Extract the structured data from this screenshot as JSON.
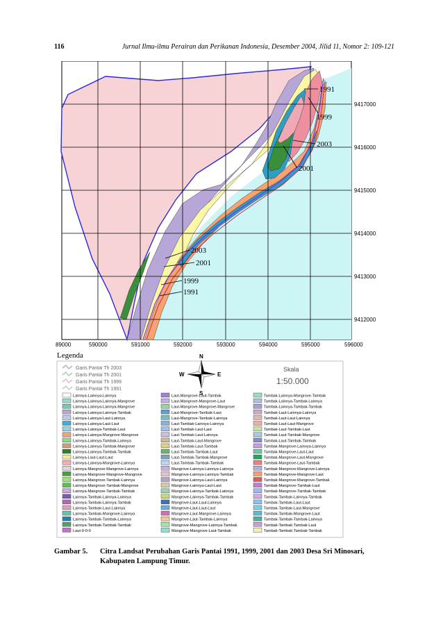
{
  "header": {
    "page_number": "116",
    "journal": "Jurnal Ilmu-ilmu Perairan dan Perikanan Indonesia, Desember 2004, Jilid 11, Nomor 2: 109-121"
  },
  "map": {
    "x_ticks": [
      "89000",
      "590000",
      "591000",
      "592000",
      "593000",
      "594000",
      "595000",
      "596000"
    ],
    "y_ticks": [
      "9417000",
      "9416000",
      "9415000",
      "9414000",
      "9413000",
      "9412000"
    ],
    "shoreline_labels_east": [
      "1991",
      "1999",
      "2003",
      "2001"
    ],
    "shoreline_labels_west": [
      "2003",
      "2001",
      "1999",
      "1991"
    ],
    "colors": {
      "sea": "#cdf5f5",
      "land": "#f8d3d6",
      "lavender": "#b7a6d8",
      "yellow": "#fbf7a6",
      "green": "#3a8f3a",
      "orange": "#f6a36f",
      "pink": "#ee8fa0",
      "teal": "#2e9fc4",
      "boundary": "#2b2bd6"
    }
  },
  "legend": {
    "title": "Legenda",
    "lines": [
      {
        "label": "Garis Pantai Th 2003",
        "color": "#b9b0c8"
      },
      {
        "label": "Garis Pantai Th 2001",
        "color": "#9fd89f"
      },
      {
        "label": "Garis Pantai Th 1999",
        "color": "#e8b8c8"
      },
      {
        "label": "Garis Pantai Th 1991",
        "color": "#c8c8c8"
      }
    ],
    "compass": {
      "n": "N",
      "s": "S",
      "e": "E",
      "w": "W"
    },
    "scale": {
      "label": "Skala",
      "value": "1:50.000"
    },
    "columns": [
      [
        {
          "label": "Lainnya-Lainnya-Lainnya",
          "color": "#ffffff"
        },
        {
          "label": "Lainnya-Lainnya-Lainnya-Mangrove",
          "color": "#9fd6c8"
        },
        {
          "label": "Lainnya-Lainnya-Lainnya-Mangrove",
          "color": "#7cc7b0"
        },
        {
          "label": "Lainnya-Lainnya-Lainnya-Tambak",
          "color": "#b9a8d6"
        },
        {
          "label": "Lainnya-Lainnya-Laut-Lainnya",
          "color": "#c6c6e8"
        },
        {
          "label": "Lainnya-Lainnya-Laut-Laut",
          "color": "#3cb0d8"
        },
        {
          "label": "Lainnya-Lainnya-Tambak-Laut",
          "color": "#90d4e6"
        },
        {
          "label": "Lainnya-Lainnya-Mangrove-Mangrove",
          "color": "#f4a27a"
        },
        {
          "label": "Lainnya-Lainnya-Tambak-Lainnya",
          "color": "#8fd68f"
        },
        {
          "label": "Lainnya-Lainnya-Tambak-Mangrove",
          "color": "#c9a27c"
        },
        {
          "label": "Lainnya-Lainnya-Tambak-Tambak",
          "color": "#2f7f2f"
        },
        {
          "label": "Lainnya-Laut-Laut-Laut",
          "color": "#f0e8a0"
        },
        {
          "label": "Lainnya-Lainnya-Mangrove-Lainnya",
          "color": "#f4b0b8"
        },
        {
          "label": "Lainnya-Mangrove-Mangrove-Lainnya",
          "color": "#d8d8d8"
        },
        {
          "label": "Lainnya-Mangrove-Mangrove-Mangrove",
          "color": "#4c9c4c"
        },
        {
          "label": "Lainnya-Mangrove-Tambak-Lainnya",
          "color": "#a8d880"
        },
        {
          "label": "Lainnya-Mangrove-Tambak-Mangrove",
          "color": "#5cc05c"
        },
        {
          "label": "Lainnya-Mangrove-Tambak-Tambak",
          "color": "#c8a8d8"
        },
        {
          "label": "Lainnya-Tambak-Lainnya-Lainnya",
          "color": "#7c5cac"
        },
        {
          "label": "Lainnya-Tambak-Lainnya-Tambak",
          "color": "#b06ca8"
        },
        {
          "label": "Lainnya-Tambak-Laut-Lainnya",
          "color": "#e0a0c0"
        },
        {
          "label": "Lainnya-Tambak-Mangrove-Lainnya",
          "color": "#6cc0b0"
        },
        {
          "label": "Lainnya-Tambak-Tambak-Lainnya",
          "color": "#2c7cb0"
        },
        {
          "label": "Lainnya-Tambak-Tambak-Tambak",
          "color": "#50a070"
        },
        {
          "label": "Laut-0-0-0",
          "color": "#c870c8"
        }
      ],
      [
        {
          "label": "Laut-Mangrove-Laut-Tambak",
          "color": "#a080d0"
        },
        {
          "label": "Laut-Mangrove-Mangrove-Laut",
          "color": "#c0b0e0"
        },
        {
          "label": "Laut-Mangrove-Mangrove-Mangrove",
          "color": "#9cd0a0"
        },
        {
          "label": "Laut-Mangrove-Tambak-Laut",
          "color": "#5ca0d0"
        },
        {
          "label": "Laut-Mangrove-Tambak-Lainnya",
          "color": "#70c0c0"
        },
        {
          "label": "Laut-Tambak-Lainnya-Lainnya",
          "color": "#88b0e0"
        },
        {
          "label": "Laut-Tambak-Laut-Laut",
          "color": "#a0c0e8"
        },
        {
          "label": "Laut-Tambak-Laut-Lainnya",
          "color": "#c8c0e8"
        },
        {
          "label": "Laut-Tambak-Laut-Mangrove",
          "color": "#d0b890"
        },
        {
          "label": "Laut-Tambak-Laut-Tambak",
          "color": "#e0d080"
        },
        {
          "label": "Laut-Tambak-Tambak-Laut",
          "color": "#70b070"
        },
        {
          "label": "Laut-Tambak-Tambak-Mangrove",
          "color": "#80a0c0"
        },
        {
          "label": "Laut-Tambak-Tambak-Tambak",
          "color": "#b8d8f0"
        },
        {
          "label": "Mangrove-Lainnya-Lainnya-Lainnya",
          "color": "#c8b0d8"
        },
        {
          "label": "Mangrove-Lainnya-Lainnya-Tambak",
          "color": "#e8c0c8"
        },
        {
          "label": "Mangrove-Lainnya-Laut-Lainnya",
          "color": "#b0a8c0"
        },
        {
          "label": "Mangrove-Lainnya-Laut-Laut",
          "color": "#d8c8b0"
        },
        {
          "label": "Mangrove-Lainnya-Tambak-Lainnya",
          "color": "#a0d0b0"
        },
        {
          "label": "Mangrove-Lainnya-Tambak-Tambak",
          "color": "#c0d880"
        },
        {
          "label": "Mangrove-Laut-Laut-Lainnya",
          "color": "#4870a8"
        },
        {
          "label": "Mangrove-Laut-Laut-Laut",
          "color": "#6cb0d8"
        },
        {
          "label": "Mangrove-Laut-Mangrove-Lainnya",
          "color": "#d070b0"
        },
        {
          "label": "Mangrove-Laut-Tambak-Lainnya",
          "color": "#f0c890"
        },
        {
          "label": "Mangrove-Mangrove-Lainnya-Tambak",
          "color": "#a8e0a8"
        },
        {
          "label": "Mangrove-Mangrove-Laut-Tambak",
          "color": "#8ce0d0"
        }
      ],
      [
        {
          "label": "Tambak-Lainnya-Mangrove-Tambak",
          "color": "#98e0c0"
        },
        {
          "label": "Tambak-Lainnya-Tambak-Lainnya",
          "color": "#b0c0e0"
        },
        {
          "label": "Tambak-Lainnya-Tambak-Tambak",
          "color": "#a8a0d0"
        },
        {
          "label": "Tambak-Laut-Lainnya-Lainnya",
          "color": "#d0a8c8"
        },
        {
          "label": "Tambak-Laut-Laut-Lainnya",
          "color": "#e0b8b0"
        },
        {
          "label": "Tambak-Laut-Laut-Mangrove",
          "color": "#f0b0a0"
        },
        {
          "label": "Tambak-Laut-Tambak-Laut",
          "color": "#c8e0a0"
        },
        {
          "label": "Tambak-Laut-Tambak-Mangrove",
          "color": "#a0d0e0"
        },
        {
          "label": "Tambak-Laut-Tambak-Tambak",
          "color": "#9088c8"
        },
        {
          "label": "Tambak-Mangrove-Lainnya-Lainnya",
          "color": "#c0a0e0"
        },
        {
          "label": "Tambak-Mangrove-Laut-Laut",
          "color": "#70c8a0"
        },
        {
          "label": "Tambak-Mangrove-Laut-Mangrove",
          "color": "#30a060"
        },
        {
          "label": "Tambak-Mangrove-Laut-Tambak",
          "color": "#e88080"
        },
        {
          "label": "Tambak-Mangrove-Mangrove-Lainnya",
          "color": "#b0b0e0"
        },
        {
          "label": "Tambak-Mangrove-Mangrove-Laut",
          "color": "#f0a070"
        },
        {
          "label": "Tambak-Mangrove-Mangrove-Tambak",
          "color": "#d06060"
        },
        {
          "label": "Tambak-Mangrove-Tambak-Laut",
          "color": "#c080d0"
        },
        {
          "label": "Tambak-Mangrove-Tambak-Tambak",
          "color": "#a0b8e8"
        },
        {
          "label": "Tambak-Tambak-Lainnya-Tambak",
          "color": "#d8a8e0"
        },
        {
          "label": "Tambak-Tambak-Laut-Laut",
          "color": "#90c0f0"
        },
        {
          "label": "Tambak-Tambak-Laut-Mangrove",
          "color": "#80d0e0"
        },
        {
          "label": "Tambak-Tambak-Mangrove-Laut",
          "color": "#60b8d8"
        },
        {
          "label": "Tambak-Tambak-Tambak-Lainnya",
          "color": "#50b0a0"
        },
        {
          "label": "Tambak-Tambak-Tambak-Laut",
          "color": "#c8a0d8"
        },
        {
          "label": "Tambak-Tambak-Tambak-Tambak",
          "color": "#f0f0b0"
        }
      ]
    ]
  },
  "caption": {
    "label": "Gambar 5.",
    "text": "Citra Landsat Perubahan Garis Pantai 1991, 1999, 2001 dan 2003 Desa Sri Minosari, Kabupaten Lampung Timur."
  }
}
